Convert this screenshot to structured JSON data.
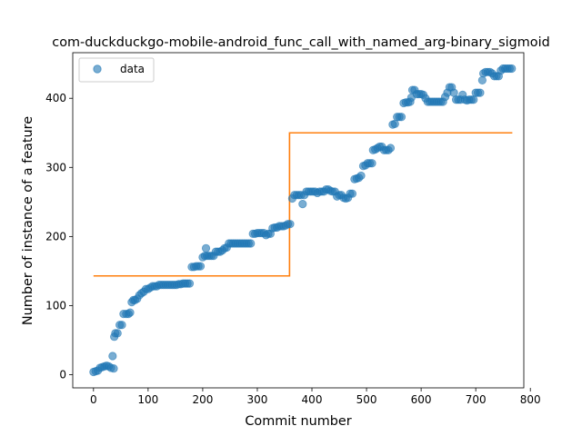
{
  "chart_data": {
    "type": "scatter",
    "title": "com-duckduckgo-mobile-android_func_call_with_named_arg-binary_sigmoid",
    "xlabel": "Commit number",
    "ylabel": "Number of instance of a feature",
    "xlim": [
      -38,
      788
    ],
    "ylim": [
      -19,
      466
    ],
    "xticks": [
      0,
      100,
      200,
      300,
      400,
      500,
      600,
      700,
      800
    ],
    "yticks": [
      0,
      100,
      200,
      300,
      400
    ],
    "legend": {
      "position": "top-left",
      "entries": [
        "data"
      ]
    },
    "colors": {
      "data": "#1f77b4",
      "fit": "#ff7f0e"
    },
    "series": [
      {
        "name": "data",
        "style": "markers",
        "points": [
          [
            0,
            4
          ],
          [
            4,
            5
          ],
          [
            8,
            6
          ],
          [
            12,
            10
          ],
          [
            16,
            11
          ],
          [
            20,
            12
          ],
          [
            24,
            13
          ],
          [
            28,
            12
          ],
          [
            32,
            10
          ],
          [
            35,
            27
          ],
          [
            37,
            9
          ],
          [
            38,
            55
          ],
          [
            40,
            60
          ],
          [
            44,
            60
          ],
          [
            48,
            72
          ],
          [
            52,
            72
          ],
          [
            55,
            88
          ],
          [
            60,
            88
          ],
          [
            64,
            88
          ],
          [
            67,
            90
          ],
          [
            70,
            105
          ],
          [
            73,
            108
          ],
          [
            76,
            108
          ],
          [
            80,
            110
          ],
          [
            84,
            115
          ],
          [
            88,
            118
          ],
          [
            92,
            120
          ],
          [
            96,
            124
          ],
          [
            100,
            124
          ],
          [
            104,
            126
          ],
          [
            108,
            128
          ],
          [
            112,
            128
          ],
          [
            116,
            128
          ],
          [
            120,
            130
          ],
          [
            124,
            130
          ],
          [
            128,
            130
          ],
          [
            132,
            130
          ],
          [
            136,
            130
          ],
          [
            140,
            130
          ],
          [
            144,
            130
          ],
          [
            148,
            130
          ],
          [
            152,
            130
          ],
          [
            156,
            131
          ],
          [
            160,
            131
          ],
          [
            164,
            132
          ],
          [
            168,
            132
          ],
          [
            172,
            132
          ],
          [
            176,
            132
          ],
          [
            180,
            156
          ],
          [
            184,
            156
          ],
          [
            188,
            157
          ],
          [
            192,
            157
          ],
          [
            196,
            157
          ],
          [
            200,
            170
          ],
          [
            204,
            172
          ],
          [
            206,
            183
          ],
          [
            208,
            172
          ],
          [
            212,
            172
          ],
          [
            216,
            172
          ],
          [
            220,
            172
          ],
          [
            224,
            178
          ],
          [
            228,
            178
          ],
          [
            232,
            178
          ],
          [
            236,
            180
          ],
          [
            240,
            183
          ],
          [
            244,
            184
          ],
          [
            248,
            190
          ],
          [
            252,
            190
          ],
          [
            256,
            190
          ],
          [
            260,
            190
          ],
          [
            264,
            190
          ],
          [
            268,
            190
          ],
          [
            272,
            190
          ],
          [
            276,
            190
          ],
          [
            280,
            190
          ],
          [
            284,
            190
          ],
          [
            288,
            190
          ],
          [
            292,
            204
          ],
          [
            296,
            204
          ],
          [
            300,
            205
          ],
          [
            304,
            205
          ],
          [
            308,
            205
          ],
          [
            312,
            205
          ],
          [
            316,
            202
          ],
          [
            320,
            204
          ],
          [
            324,
            204
          ],
          [
            328,
            212
          ],
          [
            332,
            213
          ],
          [
            336,
            213
          ],
          [
            340,
            215
          ],
          [
            344,
            215
          ],
          [
            348,
            215
          ],
          [
            352,
            216
          ],
          [
            356,
            218
          ],
          [
            360,
            218
          ],
          [
            364,
            255
          ],
          [
            368,
            260
          ],
          [
            372,
            260
          ],
          [
            376,
            260
          ],
          [
            380,
            260
          ],
          [
            383,
            247
          ],
          [
            386,
            260
          ],
          [
            390,
            265
          ],
          [
            394,
            265
          ],
          [
            398,
            265
          ],
          [
            402,
            265
          ],
          [
            406,
            265
          ],
          [
            410,
            263
          ],
          [
            414,
            265
          ],
          [
            418,
            265
          ],
          [
            422,
            265
          ],
          [
            426,
            268
          ],
          [
            430,
            268
          ],
          [
            434,
            266
          ],
          [
            438,
            265
          ],
          [
            442,
            265
          ],
          [
            446,
            258
          ],
          [
            450,
            260
          ],
          [
            454,
            260
          ],
          [
            458,
            256
          ],
          [
            462,
            255
          ],
          [
            466,
            256
          ],
          [
            470,
            262
          ],
          [
            474,
            262
          ],
          [
            478,
            283
          ],
          [
            482,
            284
          ],
          [
            486,
            285
          ],
          [
            490,
            288
          ],
          [
            494,
            302
          ],
          [
            498,
            303
          ],
          [
            502,
            306
          ],
          [
            506,
            306
          ],
          [
            510,
            306
          ],
          [
            512,
            325
          ],
          [
            516,
            326
          ],
          [
            520,
            328
          ],
          [
            524,
            330
          ],
          [
            528,
            330
          ],
          [
            532,
            325
          ],
          [
            536,
            325
          ],
          [
            540,
            325
          ],
          [
            544,
            328
          ],
          [
            548,
            362
          ],
          [
            552,
            363
          ],
          [
            556,
            373
          ],
          [
            560,
            373
          ],
          [
            564,
            373
          ],
          [
            568,
            393
          ],
          [
            572,
            394
          ],
          [
            576,
            394
          ],
          [
            580,
            395
          ],
          [
            582,
            401
          ],
          [
            584,
            412
          ],
          [
            588,
            412
          ],
          [
            592,
            406
          ],
          [
            596,
            406
          ],
          [
            600,
            406
          ],
          [
            604,
            405
          ],
          [
            608,
            400
          ],
          [
            612,
            395
          ],
          [
            616,
            395
          ],
          [
            620,
            395
          ],
          [
            624,
            395
          ],
          [
            628,
            395
          ],
          [
            632,
            395
          ],
          [
            636,
            395
          ],
          [
            640,
            395
          ],
          [
            644,
            402
          ],
          [
            648,
            408
          ],
          [
            652,
            416
          ],
          [
            656,
            416
          ],
          [
            660,
            408
          ],
          [
            664,
            398
          ],
          [
            668,
            398
          ],
          [
            672,
            398
          ],
          [
            676,
            405
          ],
          [
            680,
            398
          ],
          [
            684,
            397
          ],
          [
            688,
            398
          ],
          [
            692,
            398
          ],
          [
            696,
            398
          ],
          [
            700,
            408
          ],
          [
            704,
            408
          ],
          [
            708,
            408
          ],
          [
            712,
            426
          ],
          [
            714,
            436
          ],
          [
            718,
            438
          ],
          [
            722,
            438
          ],
          [
            726,
            438
          ],
          [
            730,
            436
          ],
          [
            734,
            432
          ],
          [
            738,
            432
          ],
          [
            742,
            432
          ],
          [
            746,
            440
          ],
          [
            750,
            443
          ],
          [
            754,
            443
          ],
          [
            758,
            443
          ],
          [
            762,
            443
          ],
          [
            766,
            443
          ]
        ]
      },
      {
        "name": "",
        "style": "step-line",
        "points": [
          [
            0,
            143
          ],
          [
            359,
            143
          ],
          [
            359,
            350
          ],
          [
            767,
            350
          ]
        ]
      }
    ]
  }
}
